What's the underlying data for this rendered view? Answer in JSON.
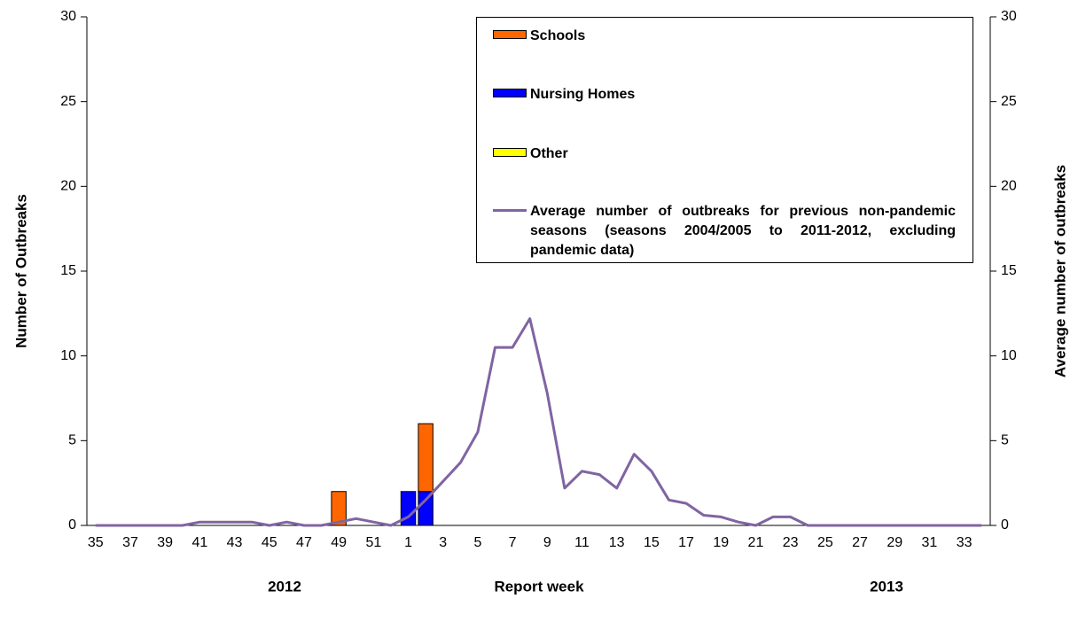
{
  "chart_data": {
    "type": "bar",
    "stacked": true,
    "x_label": "Report week",
    "y_label": "Number of Outbreaks",
    "y2_label": "Average number of outbreaks",
    "annotations": [
      "2012",
      "2013"
    ],
    "categories": [
      "35",
      null,
      "37",
      null,
      "39",
      null,
      "41",
      null,
      "43",
      null,
      "45",
      null,
      "47",
      null,
      "49",
      null,
      "51",
      null,
      "1",
      null,
      "3",
      null,
      "5",
      null,
      "7",
      null,
      "9",
      null,
      "11",
      null,
      "13",
      null,
      "15",
      null,
      "17",
      null,
      "19",
      null,
      "21",
      null,
      "23",
      null,
      "25",
      null,
      "27",
      null,
      "29",
      null,
      "31",
      null,
      "33",
      null
    ],
    "series": [
      {
        "name": "Schools",
        "type": "bar",
        "color": "#ff6600",
        "values": [
          0,
          0,
          0,
          0,
          0,
          0,
          0,
          0,
          0,
          0,
          0,
          0,
          0,
          0,
          2,
          0,
          0,
          0,
          0,
          4,
          0,
          0,
          0,
          0,
          0,
          0,
          0,
          0,
          0,
          0,
          0,
          0,
          0,
          0,
          0,
          0,
          0,
          0,
          0,
          0,
          0,
          0,
          0,
          0,
          0,
          0,
          0,
          0,
          0,
          0,
          0,
          0
        ]
      },
      {
        "name": "Nursing Homes",
        "type": "bar",
        "color": "#0000ff",
        "values": [
          0,
          0,
          0,
          0,
          0,
          0,
          0,
          0,
          0,
          0,
          0,
          0,
          0,
          0,
          0,
          0,
          0,
          0,
          2,
          2,
          0,
          0,
          0,
          0,
          0,
          0,
          0,
          0,
          0,
          0,
          0,
          0,
          0,
          0,
          0,
          0,
          0,
          0,
          0,
          0,
          0,
          0,
          0,
          0,
          0,
          0,
          0,
          0,
          0,
          0,
          0,
          0
        ]
      },
      {
        "name": "Other",
        "type": "bar",
        "color": "#ffff00",
        "values": [
          0,
          0,
          0,
          0,
          0,
          0,
          0,
          0,
          0,
          0,
          0,
          0,
          0,
          0,
          0,
          0,
          0,
          0,
          0,
          0,
          0,
          0,
          0,
          0,
          0,
          0,
          0,
          0,
          0,
          0,
          0,
          0,
          0,
          0,
          0,
          0,
          0,
          0,
          0,
          0,
          0,
          0,
          0,
          0,
          0,
          0,
          0,
          0,
          0,
          0,
          0,
          0
        ]
      },
      {
        "name": "Average number of outbreaks for previous non-pandemic seasons (seasons 2004/2005 to 2011-2012, excluding pandemic data)",
        "type": "line",
        "axis": "y2",
        "color": "#8064a2",
        "values": [
          0,
          0,
          0,
          0,
          0,
          0,
          0.2,
          0.2,
          0.2,
          0.2,
          0,
          0.2,
          0,
          0,
          0.2,
          0.4,
          0.2,
          0,
          0.5,
          1.5,
          2.6,
          3.7,
          5.5,
          10.5,
          10.5,
          12.2,
          7.8,
          2.2,
          3.2,
          3.0,
          2.2,
          4.2,
          3.2,
          1.5,
          1.3,
          0.6,
          0.5,
          0.2,
          0,
          0.5,
          0.5,
          0,
          0,
          0,
          0,
          0,
          0,
          0,
          0,
          0,
          0,
          0
        ]
      }
    ],
    "ylim": [
      0,
      30
    ],
    "yticks": [
      0,
      5,
      10,
      15,
      20,
      25,
      30
    ],
    "y2lim": [
      0,
      30
    ],
    "y2ticks": [
      0,
      5,
      10,
      15,
      20,
      25,
      30
    ]
  }
}
